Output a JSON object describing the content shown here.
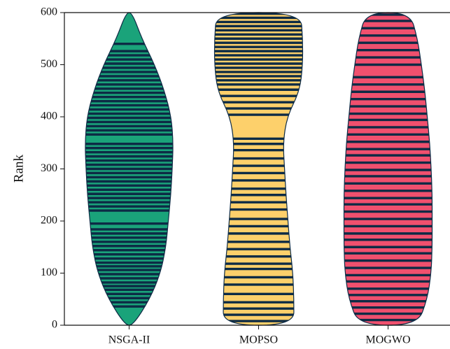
{
  "chart_data": {
    "type": "violin",
    "ylabel": "Rank",
    "categories": [
      "NSGA-II",
      "MOPSO",
      "MOGWO"
    ],
    "ylim": [
      0,
      600
    ],
    "yticks": [
      0,
      100,
      200,
      300,
      400,
      500,
      600
    ],
    "width_ranks": [
      0,
      50,
      100,
      150,
      200,
      250,
      300,
      350,
      400,
      450,
      500,
      550,
      600
    ],
    "line_color": "#0d2b45",
    "series": [
      {
        "color": "#1aa37a",
        "widths": [
          0.08,
          0.42,
          0.64,
          0.75,
          0.8,
          0.85,
          0.88,
          0.9,
          0.86,
          0.72,
          0.52,
          0.26,
          0.06
        ],
        "values": [
          36,
          44,
          52,
          60,
          68,
          75,
          82,
          90,
          98,
          106,
          113,
          120,
          128,
          136,
          144,
          152,
          160,
          168,
          176,
          184,
          195,
          220,
          228,
          236,
          244,
          252,
          260,
          268,
          276,
          284,
          292,
          300,
          308,
          316,
          324,
          332,
          340,
          348,
          366,
          374,
          382,
          390,
          398,
          406,
          414,
          422,
          430,
          438,
          446,
          454,
          462,
          470,
          478,
          486,
          494,
          502,
          510,
          518,
          526,
          540
        ]
      },
      {
        "color": "#fdd06b",
        "widths": [
          0.72,
          0.72,
          0.7,
          0.64,
          0.6,
          0.56,
          0.53,
          0.5,
          0.58,
          0.84,
          0.9,
          0.9,
          0.86
        ],
        "values": [
          8,
          20,
          32,
          44,
          60,
          78,
          92,
          108,
          118,
          132,
          146,
          160,
          176,
          190,
          204,
          222,
          236,
          250,
          262,
          278,
          292,
          306,
          320,
          336,
          348,
          358,
          404,
          416,
          428,
          440,
          452,
          462,
          470,
          478,
          486,
          494,
          502,
          510,
          518,
          526,
          534,
          542,
          550,
          558,
          566,
          574,
          582,
          590,
          598
        ]
      },
      {
        "color": "#f0506e",
        "widths": [
          0.6,
          0.8,
          0.88,
          0.9,
          0.9,
          0.9,
          0.88,
          0.85,
          0.8,
          0.75,
          0.68,
          0.6,
          0.45
        ],
        "values": [
          10,
          22,
          34,
          46,
          58,
          70,
          84,
          96,
          110,
          124,
          138,
          150,
          164,
          176,
          190,
          204,
          218,
          232,
          244,
          258,
          272,
          286,
          298,
          312,
          326,
          338,
          352,
          366,
          380,
          394,
          406,
          420,
          434,
          448,
          462,
          476,
          500,
          514,
          528,
          542,
          556,
          570,
          584,
          596
        ]
      }
    ]
  }
}
